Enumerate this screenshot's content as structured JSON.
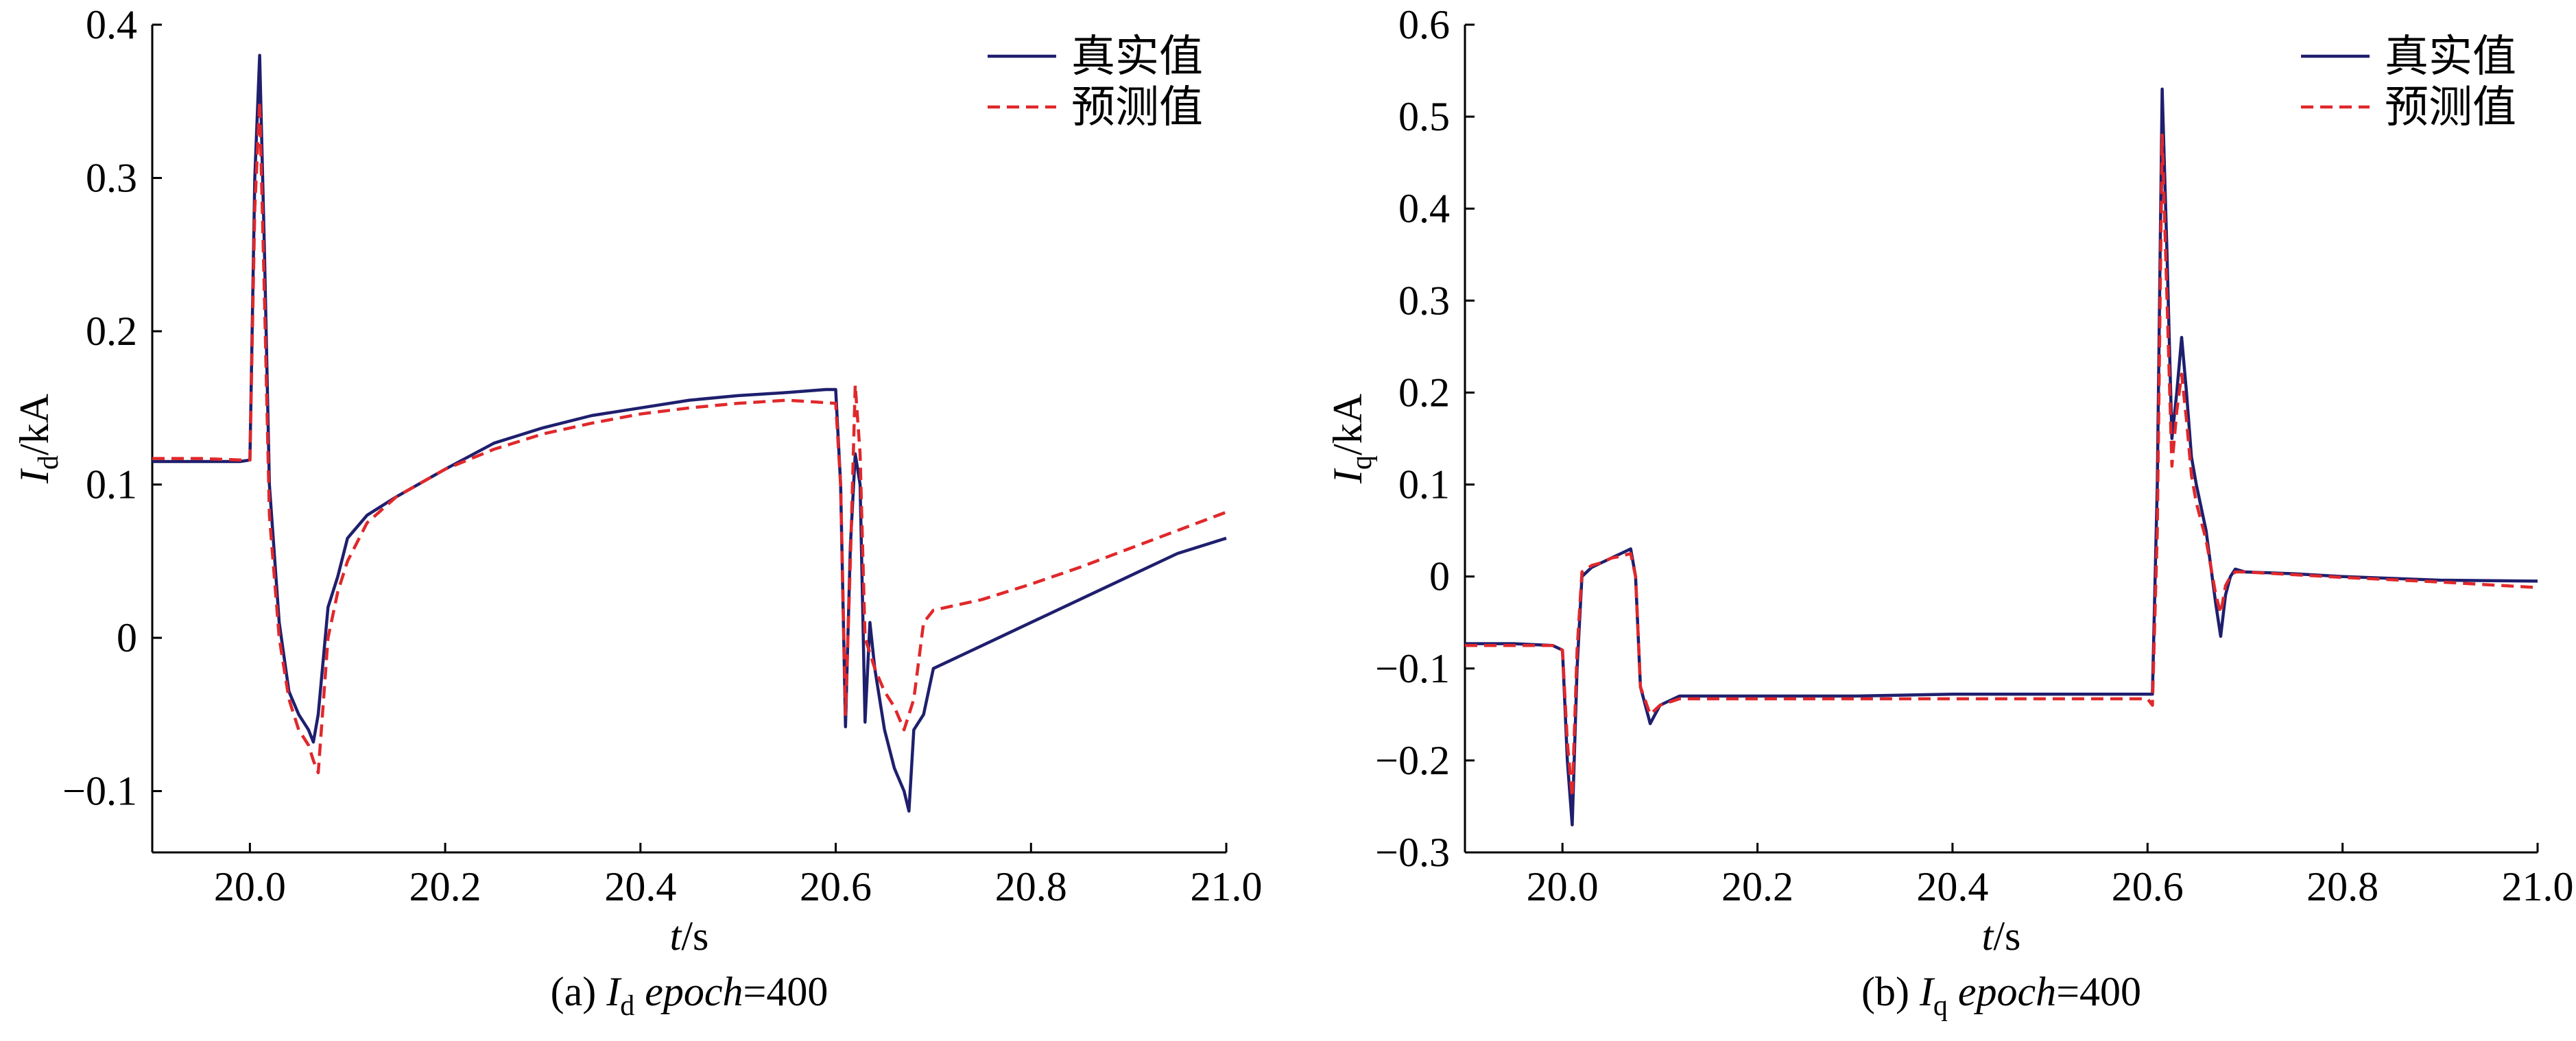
{
  "chart_data": [
    {
      "type": "line",
      "xlabel": "t/s",
      "ylabel": "Id/kA",
      "caption": "(a) Id epoch=400",
      "xlim": [
        19.9,
        21.0
      ],
      "ylim": [
        -0.14,
        0.4
      ],
      "xticks": [
        20.0,
        20.2,
        20.4,
        20.6,
        20.8,
        21.0
      ],
      "xtick_labels": [
        "20.0",
        "20.2",
        "20.4",
        "20.6",
        "20.8",
        "21.0"
      ],
      "yticks": [
        -0.1,
        0,
        0.1,
        0.2,
        0.3,
        0.4
      ],
      "ytick_labels": [
        "−0.1",
        "0",
        "0.1",
        "0.2",
        "0.3",
        "0.4"
      ],
      "legend_position": "top-right",
      "series": [
        {
          "name": "真实值",
          "color": "#1f1f6e",
          "style": "solid",
          "x": [
            19.9,
            19.95,
            19.99,
            20.0,
            20.005,
            20.01,
            20.015,
            20.02,
            20.03,
            20.04,
            20.05,
            20.06,
            20.065,
            20.07,
            20.08,
            20.09,
            20.1,
            20.12,
            20.15,
            20.2,
            20.25,
            20.3,
            20.35,
            20.4,
            20.45,
            20.5,
            20.55,
            20.59,
            20.6,
            20.605,
            20.61,
            20.615,
            20.62,
            20.625,
            20.63,
            20.635,
            20.64,
            20.645,
            20.65,
            20.66,
            20.67,
            20.675,
            20.68,
            20.69,
            20.7,
            20.75,
            20.8,
            20.85,
            20.9,
            20.95,
            21.0
          ],
          "y": [
            0.115,
            0.115,
            0.115,
            0.116,
            0.3,
            0.38,
            0.25,
            0.1,
            0.01,
            -0.035,
            -0.05,
            -0.06,
            -0.068,
            -0.05,
            0.02,
            0.04,
            0.065,
            0.08,
            0.092,
            0.11,
            0.127,
            0.137,
            0.145,
            0.15,
            0.155,
            0.158,
            0.16,
            0.162,
            0.162,
            0.1,
            -0.058,
            0.06,
            0.12,
            0.1,
            -0.055,
            0.01,
            -0.02,
            -0.04,
            -0.06,
            -0.085,
            -0.1,
            -0.113,
            -0.06,
            -0.05,
            -0.02,
            -0.005,
            0.01,
            0.025,
            0.04,
            0.055,
            0.065
          ]
        },
        {
          "name": "预测值",
          "color": "#e0282b",
          "style": "dashed",
          "x": [
            19.9,
            19.95,
            19.99,
            20.0,
            20.005,
            20.01,
            20.015,
            20.02,
            20.03,
            20.04,
            20.05,
            20.06,
            20.065,
            20.07,
            20.08,
            20.09,
            20.1,
            20.12,
            20.15,
            20.2,
            20.25,
            20.3,
            20.35,
            20.4,
            20.45,
            20.5,
            20.55,
            20.6,
            20.605,
            20.61,
            20.615,
            20.62,
            20.625,
            20.63,
            20.64,
            20.65,
            20.66,
            20.67,
            20.68,
            20.69,
            20.7,
            20.75,
            20.8,
            20.85,
            20.9,
            20.95,
            21.0
          ],
          "y": [
            0.117,
            0.117,
            0.116,
            0.116,
            0.28,
            0.35,
            0.22,
            0.08,
            0.0,
            -0.04,
            -0.06,
            -0.07,
            -0.08,
            -0.088,
            0.0,
            0.03,
            0.05,
            0.075,
            0.092,
            0.11,
            0.123,
            0.133,
            0.14,
            0.146,
            0.15,
            0.153,
            0.155,
            0.153,
            0.1,
            -0.05,
            0.05,
            0.165,
            0.12,
            0.0,
            -0.02,
            -0.035,
            -0.045,
            -0.06,
            -0.04,
            0.01,
            0.018,
            0.025,
            0.035,
            0.046,
            0.058,
            0.07,
            0.082
          ]
        }
      ]
    },
    {
      "type": "line",
      "xlabel": "t/s",
      "ylabel": "Iq/kA",
      "caption": "(b) Iq epoch=400",
      "xlim": [
        19.9,
        21.0
      ],
      "ylim": [
        -0.3,
        0.6
      ],
      "xticks": [
        20.0,
        20.2,
        20.4,
        20.6,
        20.8,
        21.0
      ],
      "xtick_labels": [
        "20.0",
        "20.2",
        "20.4",
        "20.6",
        "20.8",
        "21.0"
      ],
      "yticks": [
        -0.3,
        -0.2,
        -0.1,
        0,
        0.1,
        0.2,
        0.3,
        0.4,
        0.5,
        0.6
      ],
      "ytick_labels": [
        "−0.3",
        "−0.2",
        "−0.1",
        "0",
        "0.1",
        "0.2",
        "0.3",
        "0.4",
        "0.5",
        "0.6"
      ],
      "legend_position": "top-right",
      "series": [
        {
          "name": "真实值",
          "color": "#1f1f6e",
          "style": "solid",
          "x": [
            19.9,
            19.95,
            19.99,
            20.0,
            20.005,
            20.01,
            20.015,
            20.02,
            20.03,
            20.04,
            20.05,
            20.06,
            20.07,
            20.075,
            20.08,
            20.09,
            20.1,
            20.12,
            20.2,
            20.3,
            20.4,
            20.5,
            20.6,
            20.605,
            20.61,
            20.615,
            20.62,
            20.625,
            20.63,
            20.635,
            20.64,
            20.645,
            20.65,
            20.66,
            20.67,
            20.675,
            20.68,
            20.685,
            20.69,
            20.7,
            20.75,
            20.8,
            20.9,
            21.0
          ],
          "y": [
            -0.073,
            -0.073,
            -0.075,
            -0.08,
            -0.2,
            -0.27,
            -0.1,
            0.0,
            0.01,
            0.015,
            0.02,
            0.025,
            0.03,
            0.0,
            -0.12,
            -0.16,
            -0.14,
            -0.13,
            -0.13,
            -0.13,
            -0.128,
            -0.128,
            -0.128,
            -0.128,
            0.1,
            0.53,
            0.35,
            0.15,
            0.2,
            0.26,
            0.2,
            0.13,
            0.1,
            0.05,
            -0.03,
            -0.065,
            -0.02,
            0.0,
            0.008,
            0.005,
            0.003,
            0.0,
            -0.004,
            -0.005
          ],
          "legend_index": 0
        },
        {
          "name": "预测值",
          "color": "#e0282b",
          "style": "dashed",
          "x": [
            19.9,
            19.95,
            19.99,
            20.0,
            20.005,
            20.01,
            20.015,
            20.02,
            20.03,
            20.04,
            20.05,
            20.06,
            20.07,
            20.075,
            20.08,
            20.09,
            20.1,
            20.12,
            20.2,
            20.3,
            20.4,
            20.5,
            20.6,
            20.605,
            20.61,
            20.615,
            20.62,
            20.625,
            20.63,
            20.635,
            20.64,
            20.645,
            20.65,
            20.66,
            20.67,
            20.675,
            20.68,
            20.685,
            20.69,
            20.7,
            20.75,
            20.8,
            20.9,
            21.0
          ],
          "y": [
            -0.075,
            -0.075,
            -0.075,
            -0.08,
            -0.18,
            -0.24,
            -0.08,
            0.005,
            0.012,
            0.015,
            0.02,
            0.022,
            0.025,
            0.0,
            -0.12,
            -0.15,
            -0.14,
            -0.133,
            -0.133,
            -0.133,
            -0.133,
            -0.133,
            -0.133,
            -0.14,
            0.05,
            0.48,
            0.3,
            0.12,
            0.18,
            0.22,
            0.17,
            0.11,
            0.08,
            0.04,
            -0.02,
            -0.04,
            -0.01,
            0.0,
            0.005,
            0.005,
            0.002,
            -0.001,
            -0.006,
            -0.012
          ]
        }
      ]
    }
  ]
}
